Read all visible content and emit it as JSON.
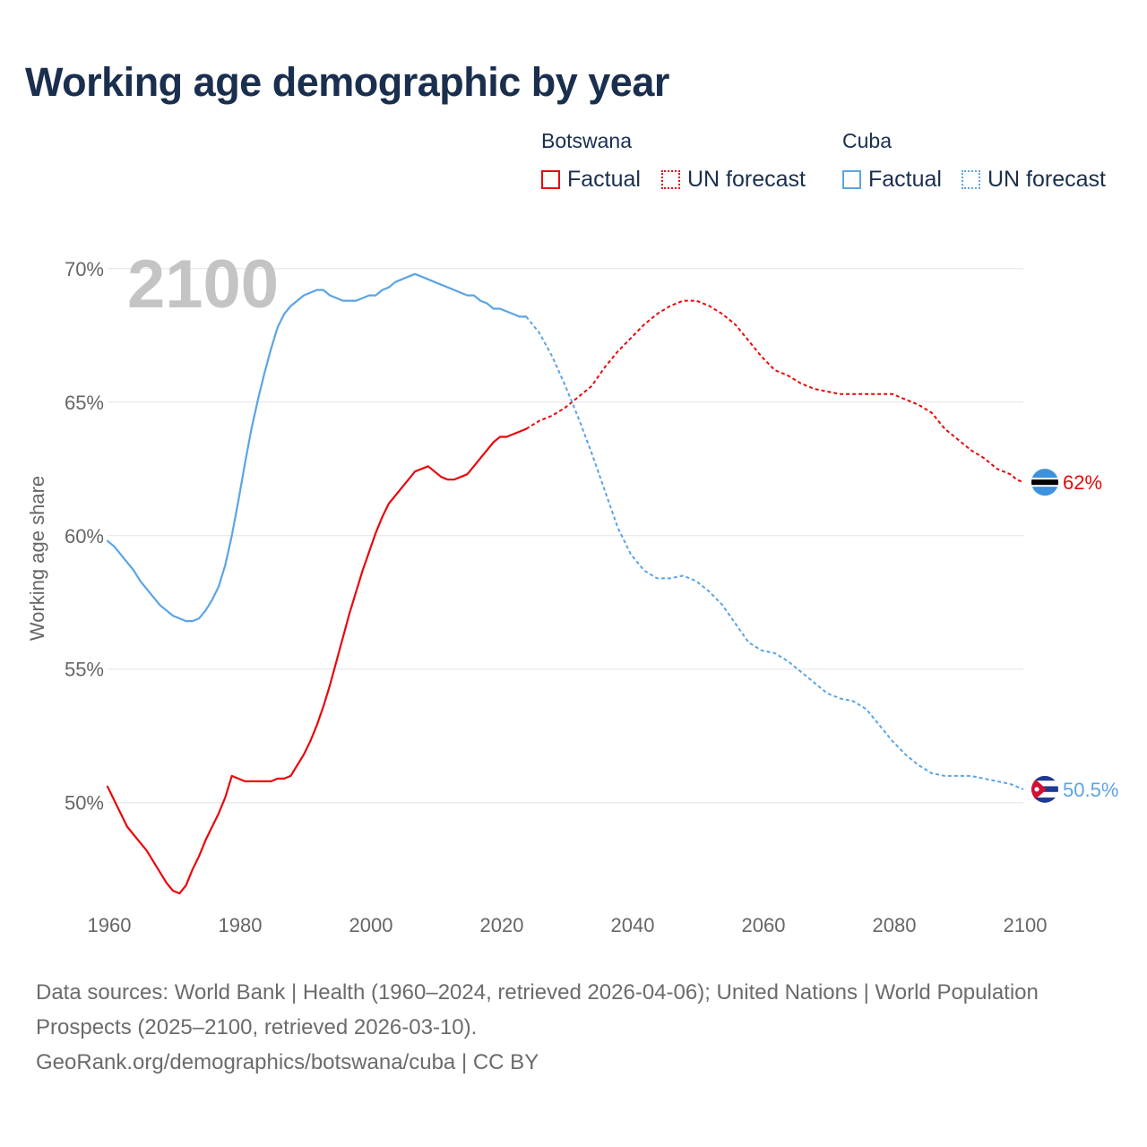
{
  "title": "Working age demographic by year",
  "legend": {
    "groups": [
      {
        "name": "Botswana",
        "factual_label": "Factual",
        "forecast_label": "UN forecast",
        "color": "#e8080b"
      },
      {
        "name": "Cuba",
        "factual_label": "Factual",
        "forecast_label": "UN forecast",
        "color": "#5ba4e6"
      }
    ]
  },
  "footer": {
    "sources": "Data sources: World Bank | Health (1960–2024, retrieved 2026-04-06); United Nations | World Population Prospects (2025–2100, retrieved 2026-03-10).",
    "credit": "GeoRank.org/demographics/botswana/cuba | CC BY"
  },
  "chart_data": {
    "type": "line",
    "title": "Working age demographic by year",
    "xlabel": "",
    "ylabel": "Working age share",
    "xlim": [
      1960,
      2100
    ],
    "ylim": [
      46.5,
      71
    ],
    "x_ticks": [
      {
        "value": 1960,
        "label": "1960"
      },
      {
        "value": 1980,
        "label": "1980"
      },
      {
        "value": 2000,
        "label": "2000"
      },
      {
        "value": 2020,
        "label": "2020"
      },
      {
        "value": 2040,
        "label": "2040"
      },
      {
        "value": 2060,
        "label": "2060"
      },
      {
        "value": 2080,
        "label": "2080"
      },
      {
        "value": 2100,
        "label": "2100"
      }
    ],
    "y_ticks": [
      {
        "value": 50,
        "label": "50%"
      },
      {
        "value": 55,
        "label": "55%"
      },
      {
        "value": 60,
        "label": "60%"
      },
      {
        "value": 65,
        "label": "65%"
      },
      {
        "value": 70,
        "label": "70%"
      }
    ],
    "grid": true,
    "current_year": "2100",
    "forecast_start": 2024,
    "series": [
      {
        "name": "Botswana",
        "color": "#e8080b",
        "end_label": "62%",
        "end_value": 62.0,
        "flag": "botswana-flag-icon",
        "points": [
          [
            1960,
            50.6
          ],
          [
            1961,
            50.1
          ],
          [
            1962,
            49.6
          ],
          [
            1963,
            49.1
          ],
          [
            1964,
            48.8
          ],
          [
            1965,
            48.5
          ],
          [
            1966,
            48.2
          ],
          [
            1967,
            47.8
          ],
          [
            1968,
            47.4
          ],
          [
            1969,
            47.0
          ],
          [
            1970,
            46.7
          ],
          [
            1971,
            46.6
          ],
          [
            1972,
            46.9
          ],
          [
            1973,
            47.5
          ],
          [
            1974,
            48.0
          ],
          [
            1975,
            48.6
          ],
          [
            1976,
            49.1
          ],
          [
            1977,
            49.6
          ],
          [
            1978,
            50.2
          ],
          [
            1979,
            51.0
          ],
          [
            1980,
            50.9
          ],
          [
            1981,
            50.8
          ],
          [
            1982,
            50.8
          ],
          [
            1983,
            50.8
          ],
          [
            1984,
            50.8
          ],
          [
            1985,
            50.8
          ],
          [
            1986,
            50.9
          ],
          [
            1987,
            50.9
          ],
          [
            1988,
            51.0
          ],
          [
            1989,
            51.4
          ],
          [
            1990,
            51.8
          ],
          [
            1991,
            52.3
          ],
          [
            1992,
            52.9
          ],
          [
            1993,
            53.6
          ],
          [
            1994,
            54.4
          ],
          [
            1995,
            55.3
          ],
          [
            1996,
            56.2
          ],
          [
            1997,
            57.1
          ],
          [
            1998,
            57.9
          ],
          [
            1999,
            58.7
          ],
          [
            2000,
            59.4
          ],
          [
            2001,
            60.1
          ],
          [
            2002,
            60.7
          ],
          [
            2003,
            61.2
          ],
          [
            2004,
            61.5
          ],
          [
            2005,
            61.8
          ],
          [
            2006,
            62.1
          ],
          [
            2007,
            62.4
          ],
          [
            2008,
            62.5
          ],
          [
            2009,
            62.6
          ],
          [
            2010,
            62.4
          ],
          [
            2011,
            62.2
          ],
          [
            2012,
            62.1
          ],
          [
            2013,
            62.1
          ],
          [
            2014,
            62.2
          ],
          [
            2015,
            62.3
          ],
          [
            2016,
            62.6
          ],
          [
            2017,
            62.9
          ],
          [
            2018,
            63.2
          ],
          [
            2019,
            63.5
          ],
          [
            2020,
            63.7
          ],
          [
            2021,
            63.7
          ],
          [
            2022,
            63.8
          ],
          [
            2023,
            63.9
          ],
          [
            2024,
            64.0
          ],
          [
            2026,
            64.3
          ],
          [
            2028,
            64.5
          ],
          [
            2030,
            64.8
          ],
          [
            2032,
            65.2
          ],
          [
            2034,
            65.6
          ],
          [
            2036,
            66.3
          ],
          [
            2038,
            66.9
          ],
          [
            2040,
            67.4
          ],
          [
            2042,
            67.9
          ],
          [
            2044,
            68.3
          ],
          [
            2046,
            68.6
          ],
          [
            2048,
            68.8
          ],
          [
            2050,
            68.8
          ],
          [
            2052,
            68.6
          ],
          [
            2054,
            68.3
          ],
          [
            2056,
            67.9
          ],
          [
            2058,
            67.3
          ],
          [
            2060,
            66.7
          ],
          [
            2062,
            66.2
          ],
          [
            2064,
            66.0
          ],
          [
            2066,
            65.7
          ],
          [
            2068,
            65.5
          ],
          [
            2070,
            65.4
          ],
          [
            2072,
            65.3
          ],
          [
            2074,
            65.3
          ],
          [
            2076,
            65.3
          ],
          [
            2078,
            65.3
          ],
          [
            2080,
            65.3
          ],
          [
            2082,
            65.1
          ],
          [
            2084,
            64.9
          ],
          [
            2086,
            64.6
          ],
          [
            2088,
            64.0
          ],
          [
            2090,
            63.6
          ],
          [
            2092,
            63.2
          ],
          [
            2094,
            62.9
          ],
          [
            2096,
            62.5
          ],
          [
            2098,
            62.3
          ],
          [
            2099,
            62.1
          ],
          [
            2100,
            62.0
          ]
        ]
      },
      {
        "name": "Cuba",
        "color": "#5ba4e6",
        "end_label": "50.5%",
        "end_value": 50.5,
        "flag": "cuba-flag-icon",
        "points": [
          [
            1960,
            59.8
          ],
          [
            1961,
            59.6
          ],
          [
            1962,
            59.3
          ],
          [
            1963,
            59.0
          ],
          [
            1964,
            58.7
          ],
          [
            1965,
            58.3
          ],
          [
            1966,
            58.0
          ],
          [
            1967,
            57.7
          ],
          [
            1968,
            57.4
          ],
          [
            1969,
            57.2
          ],
          [
            1970,
            57.0
          ],
          [
            1971,
            56.9
          ],
          [
            1972,
            56.8
          ],
          [
            1973,
            56.8
          ],
          [
            1974,
            56.9
          ],
          [
            1975,
            57.2
          ],
          [
            1976,
            57.6
          ],
          [
            1977,
            58.1
          ],
          [
            1978,
            58.9
          ],
          [
            1979,
            60.0
          ],
          [
            1980,
            61.3
          ],
          [
            1981,
            62.7
          ],
          [
            1982,
            64.0
          ],
          [
            1983,
            65.1
          ],
          [
            1984,
            66.1
          ],
          [
            1985,
            67.0
          ],
          [
            1986,
            67.8
          ],
          [
            1987,
            68.3
          ],
          [
            1988,
            68.6
          ],
          [
            1989,
            68.8
          ],
          [
            1990,
            69.0
          ],
          [
            1991,
            69.1
          ],
          [
            1992,
            69.2
          ],
          [
            1993,
            69.2
          ],
          [
            1994,
            69.0
          ],
          [
            1995,
            68.9
          ],
          [
            1996,
            68.8
          ],
          [
            1997,
            68.8
          ],
          [
            1998,
            68.8
          ],
          [
            1999,
            68.9
          ],
          [
            2000,
            69.0
          ],
          [
            2001,
            69.0
          ],
          [
            2002,
            69.2
          ],
          [
            2003,
            69.3
          ],
          [
            2004,
            69.5
          ],
          [
            2005,
            69.6
          ],
          [
            2006,
            69.7
          ],
          [
            2007,
            69.8
          ],
          [
            2008,
            69.7
          ],
          [
            2009,
            69.6
          ],
          [
            2010,
            69.5
          ],
          [
            2011,
            69.4
          ],
          [
            2012,
            69.3
          ],
          [
            2013,
            69.2
          ],
          [
            2014,
            69.1
          ],
          [
            2015,
            69.0
          ],
          [
            2016,
            69.0
          ],
          [
            2017,
            68.8
          ],
          [
            2018,
            68.7
          ],
          [
            2019,
            68.5
          ],
          [
            2020,
            68.5
          ],
          [
            2021,
            68.4
          ],
          [
            2022,
            68.3
          ],
          [
            2023,
            68.2
          ],
          [
            2024,
            68.2
          ],
          [
            2026,
            67.6
          ],
          [
            2028,
            66.7
          ],
          [
            2030,
            65.6
          ],
          [
            2032,
            64.4
          ],
          [
            2034,
            63.1
          ],
          [
            2036,
            61.7
          ],
          [
            2038,
            60.3
          ],
          [
            2040,
            59.3
          ],
          [
            2042,
            58.7
          ],
          [
            2044,
            58.4
          ],
          [
            2046,
            58.4
          ],
          [
            2048,
            58.5
          ],
          [
            2050,
            58.3
          ],
          [
            2052,
            57.9
          ],
          [
            2054,
            57.4
          ],
          [
            2056,
            56.7
          ],
          [
            2058,
            56.0
          ],
          [
            2060,
            55.7
          ],
          [
            2062,
            55.6
          ],
          [
            2064,
            55.3
          ],
          [
            2066,
            54.9
          ],
          [
            2068,
            54.5
          ],
          [
            2070,
            54.1
          ],
          [
            2072,
            53.9
          ],
          [
            2074,
            53.8
          ],
          [
            2076,
            53.5
          ],
          [
            2078,
            52.9
          ],
          [
            2080,
            52.3
          ],
          [
            2082,
            51.8
          ],
          [
            2084,
            51.4
          ],
          [
            2086,
            51.1
          ],
          [
            2088,
            51.0
          ],
          [
            2090,
            51.0
          ],
          [
            2092,
            51.0
          ],
          [
            2094,
            50.9
          ],
          [
            2096,
            50.8
          ],
          [
            2098,
            50.7
          ],
          [
            2100,
            50.5
          ]
        ]
      }
    ]
  }
}
